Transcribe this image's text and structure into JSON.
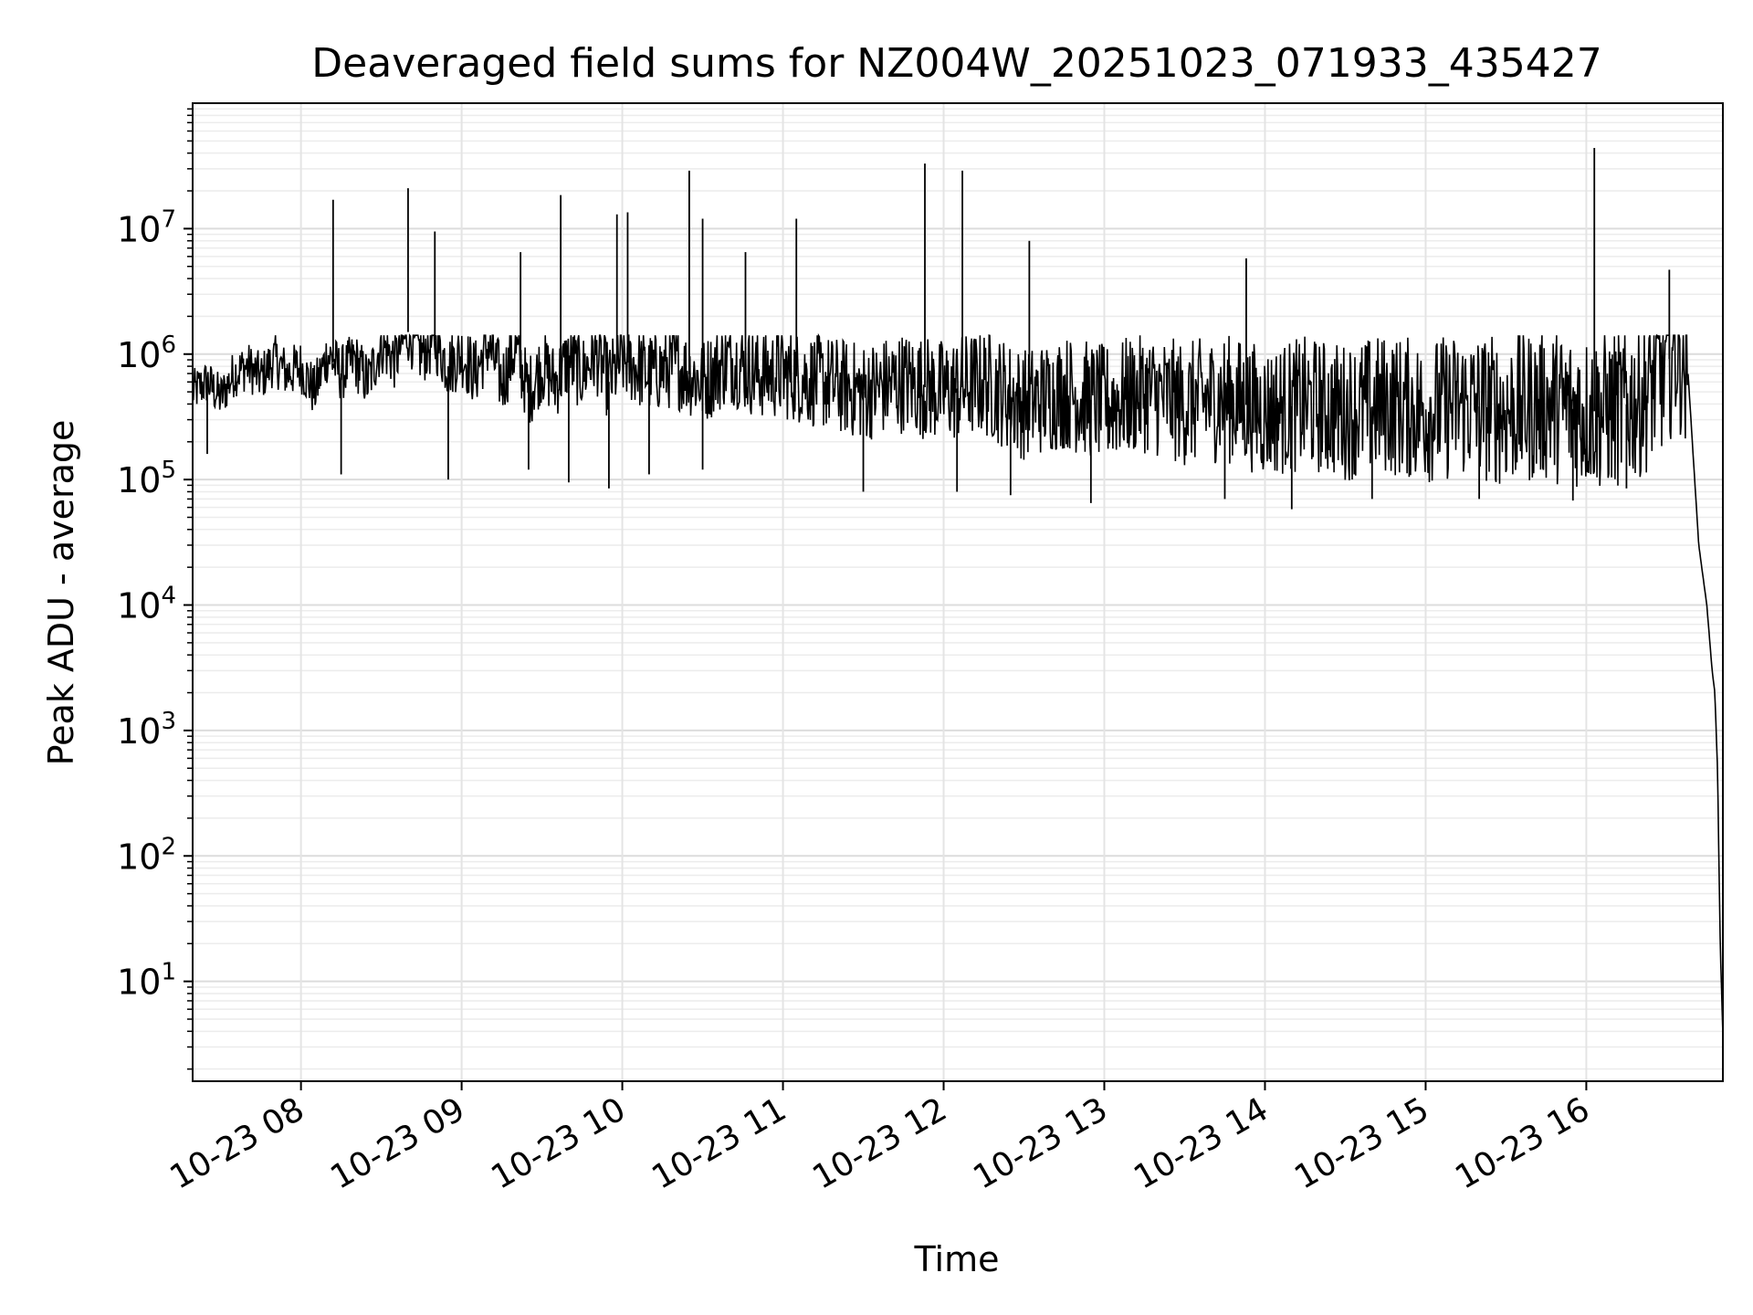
{
  "chart_data": {
    "type": "line",
    "title": "Deaveraged field sums for NZ004W_20251023_071933_435427",
    "xlabel": "Time",
    "ylabel": "Peak ADU - average",
    "yscale": "log",
    "xlim": [
      "2025-10-23 07:19:33",
      "2025-10-23 16:51:00"
    ],
    "ylim": [
      1.6,
      100000000
    ],
    "x_tick_labels": [
      "10-23 08",
      "10-23 09",
      "10-23 10",
      "10-23 11",
      "10-23 12",
      "10-23 13",
      "10-23 14",
      "10-23 15",
      "10-23 16"
    ],
    "x_tick_times": [
      "2025-10-23 08:00",
      "2025-10-23 09:00",
      "2025-10-23 10:00",
      "2025-10-23 11:00",
      "2025-10-23 12:00",
      "2025-10-23 13:00",
      "2025-10-23 14:00",
      "2025-10-23 15:00",
      "2025-10-23 16:00"
    ],
    "y_tick_values": [
      10,
      100,
      1000,
      10000,
      100000,
      1000000,
      10000000
    ],
    "y_tick_bases": [
      "10",
      "10",
      "10",
      "10",
      "10",
      "10",
      "10"
    ],
    "y_tick_exponents": [
      "1",
      "2",
      "3",
      "4",
      "5",
      "6",
      "7"
    ],
    "grid": true,
    "line_color": "#000000",
    "series": [
      {
        "points": [
          [
            "2025-10-23 07:19:33",
            500000
          ],
          [
            "2025-10-23 07:25",
            600000
          ],
          [
            "2025-10-23 07:30",
            450000
          ],
          [
            "2025-10-23 07:35",
            700000
          ],
          [
            "2025-10-23 07:40",
            800000
          ],
          [
            "2025-10-23 07:45",
            650000
          ],
          [
            "2025-10-23 07:50",
            900000
          ],
          [
            "2025-10-23 07:55",
            700000
          ],
          [
            "2025-10-23 08:00",
            800000
          ],
          [
            "2025-10-23 08:05",
            500000
          ],
          [
            "2025-10-23 08:10",
            1000000
          ],
          [
            "2025-10-23 08:15",
            700000
          ],
          [
            "2025-10-23 08:20",
            900000
          ],
          [
            "2025-10-23 08:25",
            600000
          ],
          [
            "2025-10-23 08:30",
            1200000
          ],
          [
            "2025-10-23 08:35",
            900000
          ],
          [
            "2025-10-23 08:40",
            1500000
          ],
          [
            "2025-10-23 08:45",
            1000000
          ],
          [
            "2025-10-23 08:50",
            1300000
          ],
          [
            "2025-10-23 08:55",
            800000
          ],
          [
            "2025-10-23 09:00",
            1000000
          ],
          [
            "2025-10-23 09:05",
            700000
          ],
          [
            "2025-10-23 09:10",
            1200000
          ],
          [
            "2025-10-23 09:15",
            600000
          ],
          [
            "2025-10-23 09:20",
            1100000
          ],
          [
            "2025-10-23 09:25",
            500000
          ],
          [
            "2025-10-23 09:30",
            800000
          ],
          [
            "2025-10-23 09:35",
            600000
          ],
          [
            "2025-10-23 09:40",
            900000
          ],
          [
            "2025-10-23 09:45",
            700000
          ],
          [
            "2025-10-23 09:50",
            1000000
          ],
          [
            "2025-10-23 09:55",
            600000
          ],
          [
            "2025-10-23 10:00",
            900000
          ],
          [
            "2025-10-23 10:10",
            700000
          ],
          [
            "2025-10-23 10:20",
            800000
          ],
          [
            "2025-10-23 10:30",
            600000
          ],
          [
            "2025-10-23 10:40",
            900000
          ],
          [
            "2025-10-23 10:50",
            700000
          ],
          [
            "2025-10-23 11:00",
            700000
          ],
          [
            "2025-10-23 11:15",
            600000
          ],
          [
            "2025-10-23 11:30",
            500000
          ],
          [
            "2025-10-23 11:45",
            600000
          ],
          [
            "2025-10-23 12:00",
            500000
          ],
          [
            "2025-10-23 12:15",
            600000
          ],
          [
            "2025-10-23 12:30",
            400000
          ],
          [
            "2025-10-23 12:45",
            500000
          ],
          [
            "2025-10-23 13:00",
            400000
          ],
          [
            "2025-10-23 13:15",
            500000
          ],
          [
            "2025-10-23 13:30",
            400000
          ],
          [
            "2025-10-23 13:45",
            450000
          ],
          [
            "2025-10-23 14:00",
            350000
          ],
          [
            "2025-10-23 14:15",
            400000
          ],
          [
            "2025-10-23 14:30",
            350000
          ],
          [
            "2025-10-23 14:45",
            400000
          ],
          [
            "2025-10-23 15:00",
            350000
          ],
          [
            "2025-10-23 15:15",
            400000
          ],
          [
            "2025-10-23 15:30",
            350000
          ],
          [
            "2025-10-23 15:45",
            400000
          ],
          [
            "2025-10-23 16:00",
            350000
          ],
          [
            "2025-10-23 16:10",
            350000
          ],
          [
            "2025-10-23 16:20",
            450000
          ],
          [
            "2025-10-23 16:28",
            700000
          ],
          [
            "2025-10-23 16:34",
            1200000
          ],
          [
            "2025-10-23 16:38",
            700000
          ],
          [
            "2025-10-23 16:42",
            30000
          ],
          [
            "2025-10-23 16:45",
            10000
          ],
          [
            "2025-10-23 16:47",
            3000
          ],
          [
            "2025-10-23 16:48",
            2000
          ],
          [
            "2025-10-23 16:49",
            500
          ],
          [
            "2025-10-23 16:50",
            20
          ],
          [
            "2025-10-23 16:51",
            3.8
          ]
        ],
        "spikes": [
          [
            "2025-10-23 08:12",
            17000000
          ],
          [
            "2025-10-23 08:40",
            21000000
          ],
          [
            "2025-10-23 08:50",
            9500000
          ],
          [
            "2025-10-23 09:22",
            6500000
          ],
          [
            "2025-10-23 09:37",
            18500000
          ],
          [
            "2025-10-23 09:58",
            13000000
          ],
          [
            "2025-10-23 10:02",
            13500000
          ],
          [
            "2025-10-23 10:25",
            29000000
          ],
          [
            "2025-10-23 10:30",
            12000000
          ],
          [
            "2025-10-23 10:46",
            6500000
          ],
          [
            "2025-10-23 11:05",
            12000000
          ],
          [
            "2025-10-23 11:53",
            33000000
          ],
          [
            "2025-10-23 12:07",
            29000000
          ],
          [
            "2025-10-23 12:32",
            8000000
          ],
          [
            "2025-10-23 13:53",
            5800000
          ],
          [
            "2025-10-23 16:03",
            44000000
          ],
          [
            "2025-10-23 16:31",
            4700000
          ]
        ],
        "dips": [
          [
            "2025-10-23 07:25",
            160000
          ],
          [
            "2025-10-23 08:15",
            110000
          ],
          [
            "2025-10-23 08:55",
            100000
          ],
          [
            "2025-10-23 09:25",
            120000
          ],
          [
            "2025-10-23 09:40",
            95000
          ],
          [
            "2025-10-23 09:55",
            85000
          ],
          [
            "2025-10-23 10:10",
            110000
          ],
          [
            "2025-10-23 10:30",
            120000
          ],
          [
            "2025-10-23 11:30",
            80000
          ],
          [
            "2025-10-23 12:05",
            80000
          ],
          [
            "2025-10-23 12:25",
            75000
          ],
          [
            "2025-10-23 12:55",
            65000
          ],
          [
            "2025-10-23 13:45",
            70000
          ],
          [
            "2025-10-23 14:10",
            58000
          ],
          [
            "2025-10-23 14:40",
            70000
          ],
          [
            "2025-10-23 15:20",
            70000
          ],
          [
            "2025-10-23 15:55",
            68000
          ],
          [
            "2025-10-23 16:15",
            85000
          ]
        ]
      }
    ]
  }
}
